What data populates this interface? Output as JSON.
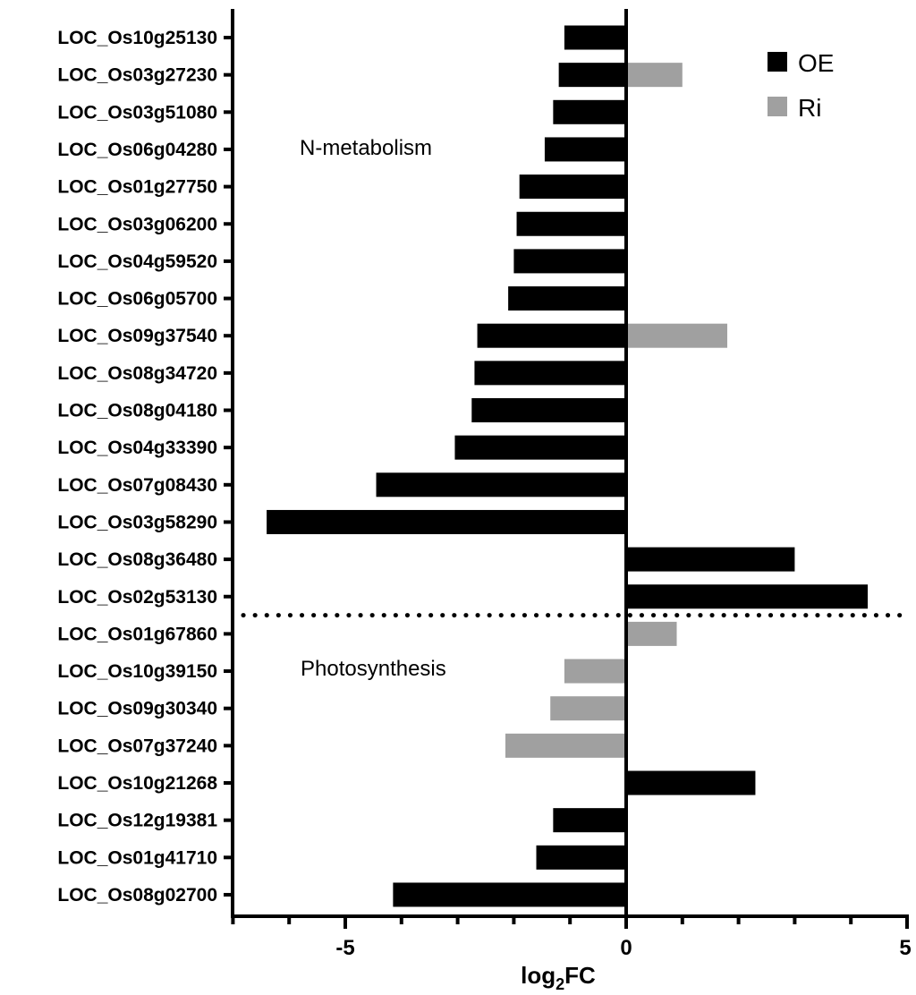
{
  "chart_data": {
    "type": "bar",
    "orientation": "horizontal",
    "xlabel": "log2FC",
    "xlabel_base": "log",
    "xlabel_sub": "2",
    "xlabel_tail": "FC",
    "xlim": [
      -7,
      5
    ],
    "xticks": [
      -5,
      0,
      5
    ],
    "grid": false,
    "legend_position": "top-right",
    "categories": [
      "LOC_Os10g25130",
      "LOC_Os03g27230",
      "LOC_Os03g51080",
      "LOC_Os06g04280",
      "LOC_Os01g27750",
      "LOC_Os03g06200",
      "LOC_Os04g59520",
      "LOC_Os06g05700",
      "LOC_Os09g37540",
      "LOC_Os08g34720",
      "LOC_Os08g04180",
      "LOC_Os04g33390",
      "LOC_Os07g08430",
      "LOC_Os03g58290",
      "LOC_Os08g36480",
      "LOC_Os02g53130",
      "LOC_Os01g67860",
      "LOC_Os10g39150",
      "LOC_Os09g30340",
      "LOC_Os07g37240",
      "LOC_Os10g21268",
      "LOC_Os12g19381",
      "LOC_Os01g41710",
      "LOC_Os08g02700"
    ],
    "series": [
      {
        "name": "OE",
        "color": "#000000",
        "values": [
          -1.1,
          -1.2,
          -1.3,
          -1.45,
          -1.9,
          -1.95,
          -2.0,
          -2.1,
          -2.65,
          -2.7,
          -2.75,
          -3.05,
          -4.45,
          -6.4,
          3.0,
          4.3,
          null,
          null,
          null,
          null,
          2.3,
          -1.3,
          -1.6,
          -4.15
        ]
      },
      {
        "name": "Ri",
        "color": "#a0a0a0",
        "values": [
          null,
          1.0,
          null,
          null,
          null,
          null,
          null,
          null,
          1.8,
          null,
          null,
          null,
          null,
          null,
          null,
          null,
          0.9,
          -1.1,
          -1.35,
          -2.15,
          null,
          null,
          null,
          null
        ]
      }
    ],
    "annotations": [
      "N-metabolism",
      "Photosynthesis"
    ],
    "divider_after_index": 15
  }
}
